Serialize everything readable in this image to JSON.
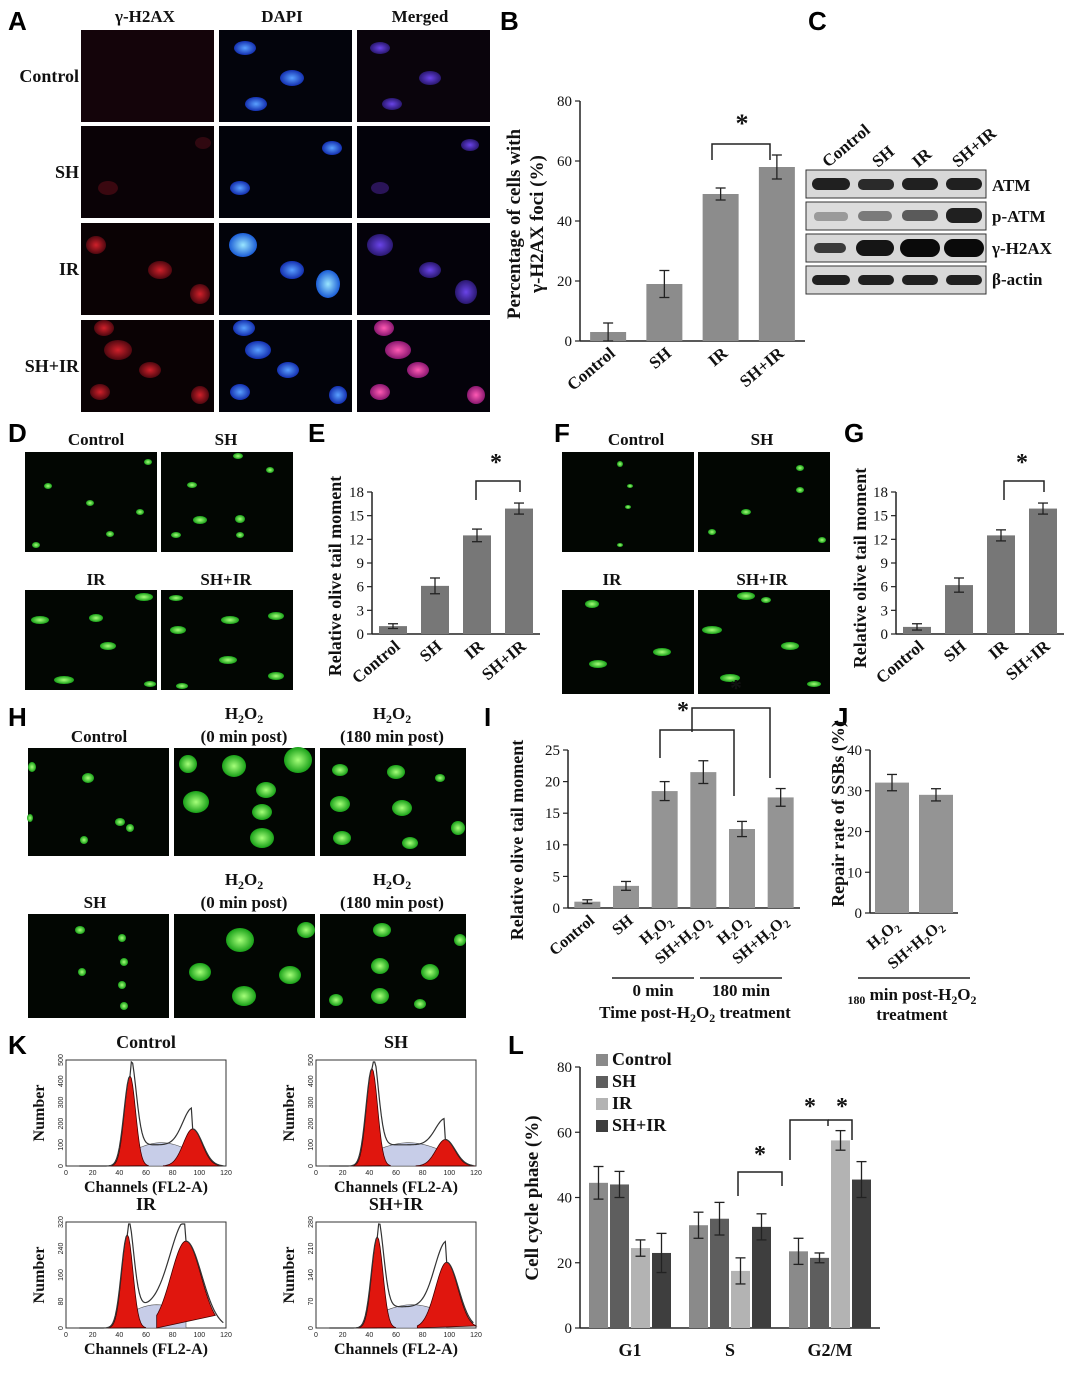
{
  "panels": {
    "A": {
      "letter": "A",
      "columns": [
        "γ-H2AX",
        "DAPI",
        "Merged"
      ],
      "rows": [
        "Control",
        "SH",
        "IR",
        "SH+IR"
      ]
    },
    "B": {
      "letter": "B",
      "ylabel_line1": "Percentage of cells with",
      "ylabel_line2": "γ-H2AX foci (%)",
      "star": "*"
    },
    "C": {
      "letter": "C",
      "lanes": [
        "Control",
        "SH",
        "IR",
        "SH+IR"
      ],
      "bands": [
        "ATM",
        "p-ATM",
        "γ-H2AX",
        "β-actin"
      ]
    },
    "D": {
      "letter": "D",
      "labels": [
        "Control",
        "SH",
        "IR",
        "SH+IR"
      ]
    },
    "E": {
      "letter": "E",
      "ylabel": "Relative olive tail moment",
      "star": "*"
    },
    "F": {
      "letter": "F",
      "labels": [
        "Control",
        "SH",
        "IR",
        "SH+IR"
      ]
    },
    "G": {
      "letter": "G",
      "ylabel": "Relative olive tail moment",
      "star": "*"
    },
    "H": {
      "letter": "H",
      "top_labels": [
        "Control",
        "H2O2",
        "(0 min post)",
        "H2O2",
        "(180 min post)"
      ],
      "bottom_labels": [
        "SH",
        "H2O2",
        "(0 min post)",
        "H2O2",
        "(180 min post)"
      ]
    },
    "I": {
      "letter": "I",
      "ylabel": "Relative olive tail moment",
      "group_0": "0 min",
      "group_180": "180 min",
      "xlabel": "Time post-H2O2 treatment",
      "star": "*"
    },
    "J": {
      "letter": "J",
      "ylabel": "Repair rate of SSBs (%)",
      "xlabel_line1": "180 min post-H2O2",
      "xlabel_line2": "treatment"
    },
    "K": {
      "letter": "K",
      "titles": [
        "Control",
        "SH",
        "IR",
        "SH+IR"
      ],
      "ylabel": "Number",
      "xlabel": "Channels (FL2-A)"
    },
    "L": {
      "letter": "L",
      "ylabel": "Cell cycle phase (%)",
      "star": "*"
    }
  },
  "chart_data": [
    {
      "panel": "B",
      "type": "bar",
      "categories": [
        "Control",
        "SH",
        "IR",
        "SH+IR"
      ],
      "values": [
        3,
        19,
        49,
        58
      ],
      "errors": [
        3,
        4.5,
        2,
        4
      ],
      "ylim": [
        0,
        80
      ],
      "yticks": [
        0,
        20,
        40,
        60,
        80
      ]
    },
    {
      "panel": "E",
      "type": "bar",
      "categories": [
        "Control",
        "SH",
        "IR",
        "SH+IR"
      ],
      "values": [
        1,
        6.1,
        12.5,
        15.9
      ],
      "errors": [
        0.3,
        1,
        0.8,
        0.7
      ],
      "ylim": [
        0,
        18
      ],
      "yticks": [
        0,
        3,
        6,
        9,
        12,
        15,
        18
      ]
    },
    {
      "panel": "G",
      "type": "bar",
      "categories": [
        "Control",
        "SH",
        "IR",
        "SH+IR"
      ],
      "values": [
        0.9,
        6.2,
        12.5,
        15.9
      ],
      "errors": [
        0.4,
        0.9,
        0.7,
        0.7
      ],
      "ylim": [
        0,
        18
      ],
      "yticks": [
        0,
        3,
        6,
        9,
        12,
        15,
        18
      ]
    },
    {
      "panel": "I",
      "type": "bar",
      "categories": [
        "Control",
        "SH",
        "H2O2",
        "SH+H2O2",
        "H2O2",
        "SH+H2O2"
      ],
      "values": [
        1,
        3.5,
        18.5,
        21.5,
        12.5,
        17.5
      ],
      "errors": [
        0.3,
        0.7,
        1.5,
        1.8,
        1.2,
        1.4
      ],
      "ylim": [
        0,
        25
      ],
      "yticks": [
        0,
        5,
        10,
        15,
        20,
        25
      ]
    },
    {
      "panel": "J",
      "type": "bar",
      "categories": [
        "H2O2",
        "SH+H2O2"
      ],
      "values": [
        32,
        29
      ],
      "errors": [
        2,
        1.5
      ],
      "ylim": [
        0,
        40
      ],
      "yticks": [
        0,
        10,
        20,
        30,
        40
      ]
    },
    {
      "panel": "L",
      "type": "bar",
      "categories": [
        "G1",
        "S",
        "G2/M"
      ],
      "series": [
        {
          "name": "Control",
          "values": [
            44.5,
            31.5,
            23.5
          ],
          "errors": [
            5,
            4,
            4
          ],
          "color": "#8a8a8a"
        },
        {
          "name": "SH",
          "values": [
            44,
            33.5,
            21.5
          ],
          "errors": [
            4,
            5,
            1.5
          ],
          "color": "#5e5e5e"
        },
        {
          "name": "IR",
          "values": [
            24.5,
            17.5,
            57.5
          ],
          "errors": [
            2.5,
            4,
            3
          ],
          "color": "#b3b3b3"
        },
        {
          "name": "SH+IR",
          "values": [
            23,
            31,
            45.5
          ],
          "errors": [
            6,
            4,
            5.5
          ],
          "color": "#3e3e3e"
        }
      ],
      "ylim": [
        0,
        80
      ],
      "yticks": [
        0,
        20,
        40,
        60,
        80
      ]
    }
  ]
}
